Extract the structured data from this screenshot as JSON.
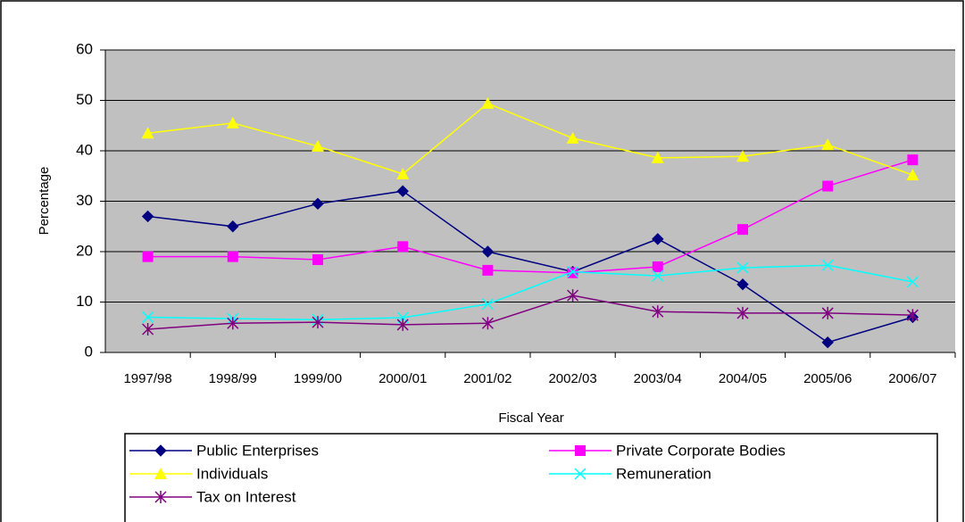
{
  "chart_data": {
    "type": "line",
    "x_label": "Fiscal Year",
    "y_label": "Percentage",
    "categories": [
      "1997/98",
      "1998/99",
      "1999/00",
      "2000/01",
      "2001/02",
      "2002/03",
      "2003/04",
      "2004/05",
      "2005/06",
      "2006/07"
    ],
    "series": [
      {
        "name": "Public Enterprises",
        "color": "#000080",
        "marker": "diamond",
        "values": [
          27,
          25,
          29.5,
          32,
          20,
          16,
          22.5,
          13.5,
          2,
          7
        ]
      },
      {
        "name": "Private Corporate Bodies",
        "color": "#ff00ff",
        "marker": "square",
        "values": [
          19,
          19,
          18.4,
          21,
          16.3,
          15.8,
          17,
          24.4,
          33,
          38.2
        ]
      },
      {
        "name": "Individuals",
        "color": "#ffff00",
        "marker": "triangle",
        "values": [
          43.5,
          45.5,
          40.9,
          35.4,
          49.4,
          42.5,
          38.6,
          38.9,
          41.2,
          35.2
        ]
      },
      {
        "name": "Remuneration",
        "color": "#00ffff",
        "marker": "x",
        "values": [
          7,
          6.7,
          6.5,
          6.9,
          9.6,
          16,
          15.2,
          16.8,
          17.3,
          14
        ]
      },
      {
        "name": "Tax on Interest",
        "color": "#800080",
        "marker": "asterisk",
        "values": [
          4.6,
          5.8,
          6,
          5.5,
          5.8,
          11.3,
          8.1,
          7.8,
          7.8,
          7.4
        ]
      }
    ],
    "ylim": [
      0,
      60
    ],
    "yticks": [
      0,
      10,
      20,
      30,
      40,
      50,
      60
    ],
    "grid": true,
    "legend": "bottom"
  }
}
